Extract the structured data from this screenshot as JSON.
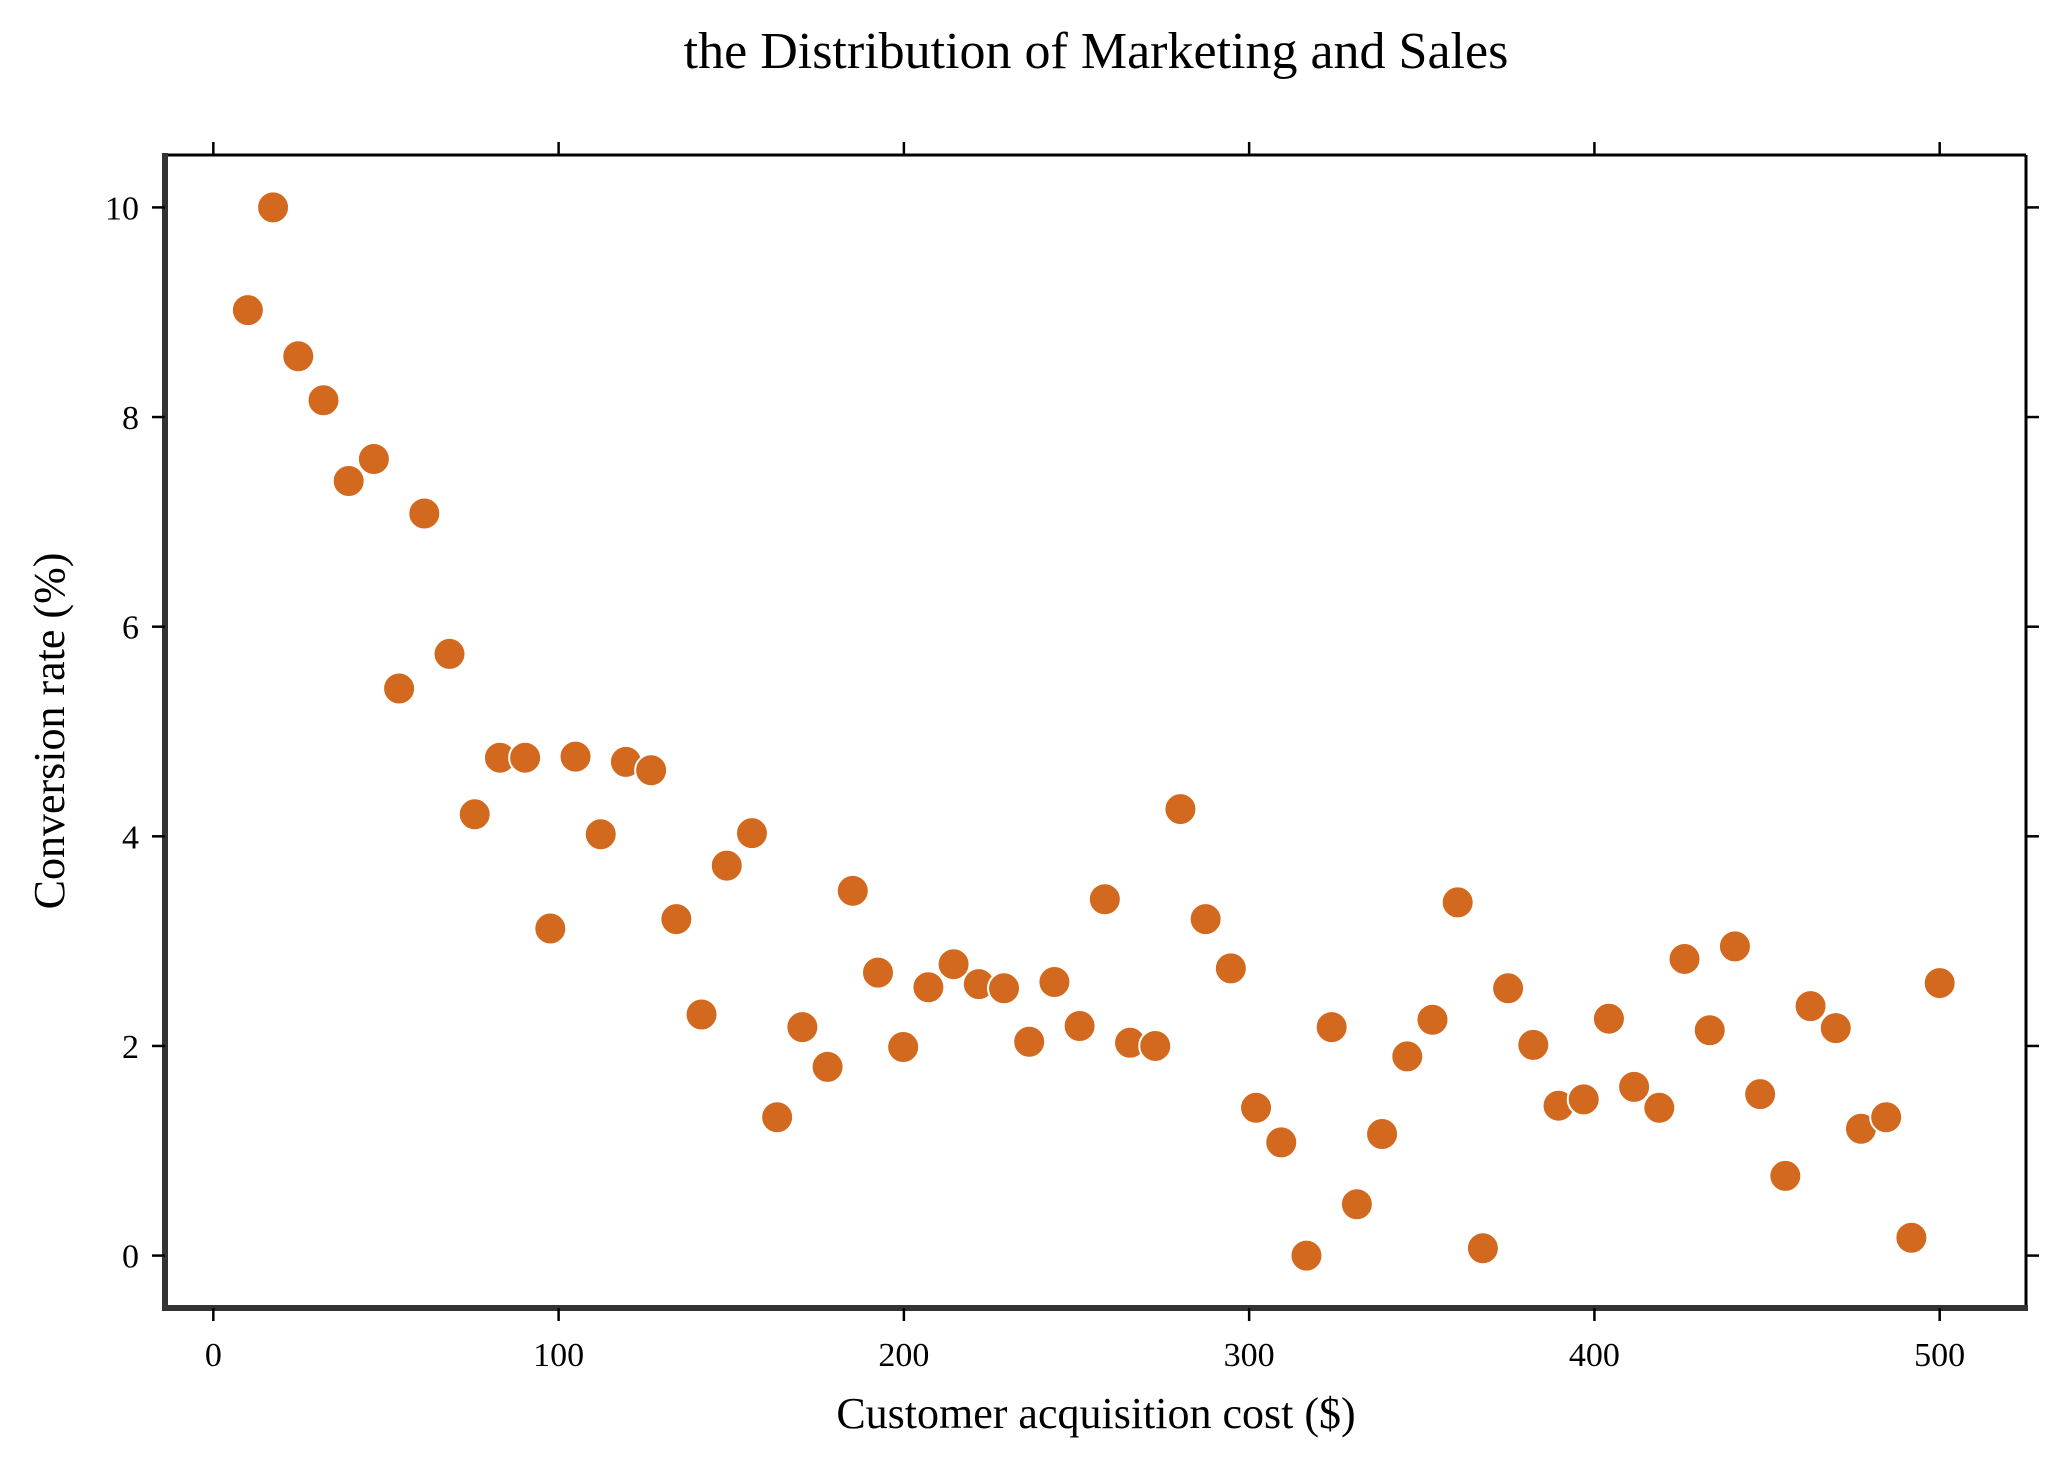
{
  "chart_data": {
    "type": "scatter",
    "title": "the Distribution of Marketing and Sales",
    "xlabel": "Customer acquisition cost ($)",
    "ylabel": "Conversion rate (%)",
    "xlim": [
      -14,
      525
    ],
    "ylim": [
      -0.5,
      10.5
    ],
    "xticks": [
      0,
      100,
      200,
      300,
      400,
      500
    ],
    "yticks": [
      0,
      2,
      4,
      6,
      8,
      10
    ],
    "grid": false,
    "marker_color": "#d2691e",
    "series": [
      {
        "x": [
          10,
          17.3,
          24.6,
          31.9,
          39.2,
          46.5,
          53.8,
          61.1,
          68.4,
          75.7,
          83,
          90.3,
          97.6,
          104.9,
          112.2,
          119.5,
          126.8,
          134.1,
          141.4,
          148.7,
          156,
          163.3,
          170.6,
          177.9,
          185.2,
          192.5,
          199.8,
          207.1,
          214.4,
          221.7,
          229,
          236.3,
          243.6,
          250.9,
          258.2,
          265.5,
          272.8,
          280.1,
          287.4,
          294.7,
          302,
          309.3,
          316.6,
          323.9,
          331.2,
          338.5,
          345.8,
          353.1,
          360.4,
          367.7,
          375,
          382.3,
          389.6,
          396.9,
          404.2,
          411.5,
          418.8,
          426.1,
          433.4,
          440.7,
          448,
          455.3,
          462.6,
          469.9,
          477.2,
          484.5,
          491.8,
          500
        ],
        "y": [
          9.02,
          10.0,
          8.58,
          8.16,
          7.39,
          7.6,
          5.41,
          7.08,
          5.74,
          4.21,
          4.75,
          4.75,
          3.12,
          4.76,
          4.02,
          4.71,
          4.63,
          3.21,
          2.3,
          3.72,
          4.03,
          1.32,
          2.18,
          1.8,
          3.48,
          2.7,
          1.99,
          2.56,
          2.78,
          2.59,
          2.55,
          2.04,
          2.61,
          2.19,
          3.4,
          2.03,
          2.0,
          4.26,
          3.21,
          2.74,
          1.41,
          1.08,
          0.0,
          2.18,
          0.49,
          1.16,
          1.9,
          2.25,
          3.37,
          0.07,
          2.55,
          2.01,
          1.43,
          1.49,
          2.26,
          1.61,
          1.41,
          2.83,
          2.15,
          2.95,
          1.54,
          0.76,
          2.38,
          2.17,
          1.21,
          1.32,
          0.17,
          2.6
        ]
      }
    ]
  }
}
